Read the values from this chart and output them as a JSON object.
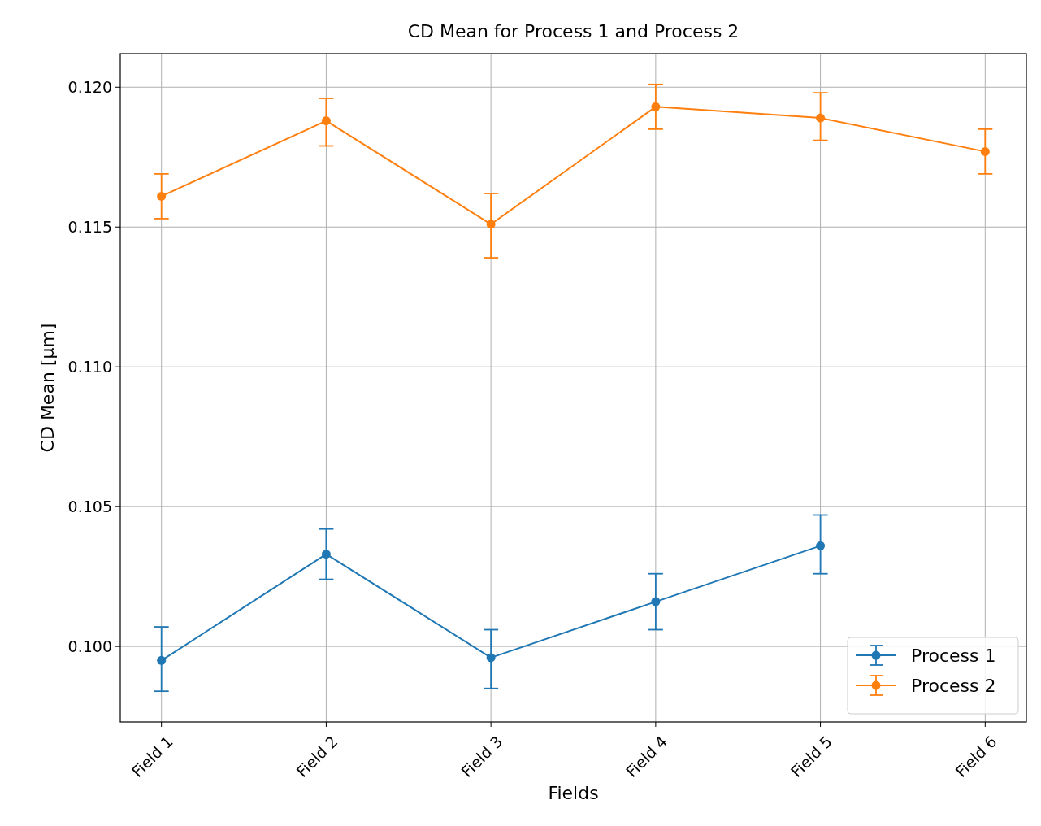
{
  "chart_data": {
    "type": "line",
    "title": "CD Mean for Process 1 and Process 2",
    "xlabel": "Fields",
    "ylabel": "CD Mean [μm]",
    "categories": [
      "Field 1",
      "Field 2",
      "Field 3",
      "Field 4",
      "Field 5",
      "Field 6"
    ],
    "series": [
      {
        "name": "Process 1",
        "color": "#1f77b4",
        "values": [
          0.0995,
          0.1033,
          0.0996,
          0.1016,
          0.1036,
          null
        ],
        "errors": [
          [
            0.0984,
            0.1007
          ],
          [
            0.1024,
            0.1042
          ],
          [
            0.0985,
            0.1006
          ],
          [
            0.1006,
            0.1026
          ],
          [
            0.1026,
            0.1047
          ],
          null
        ]
      },
      {
        "name": "Process 2",
        "color": "#ff7f0e",
        "values": [
          0.1161,
          0.1188,
          0.1151,
          0.1193,
          0.1189,
          0.1177
        ],
        "errors": [
          [
            0.1153,
            0.1169
          ],
          [
            0.1179,
            0.1196
          ],
          [
            0.1139,
            0.1162
          ],
          [
            0.1185,
            0.1201
          ],
          [
            0.1181,
            0.1198
          ],
          [
            0.1169,
            0.1185
          ]
        ]
      }
    ],
    "ylim": [
      0.0973,
      0.1212
    ],
    "yticks": [
      {
        "value": 0.1,
        "label": "0.100"
      },
      {
        "value": 0.105,
        "label": "0.105"
      },
      {
        "value": 0.11,
        "label": "0.110"
      },
      {
        "value": 0.115,
        "label": "0.115"
      },
      {
        "value": 0.12,
        "label": "0.120"
      }
    ],
    "grid": true,
    "legend": "bottom right",
    "marker": "circle",
    "line_style": "solid"
  }
}
